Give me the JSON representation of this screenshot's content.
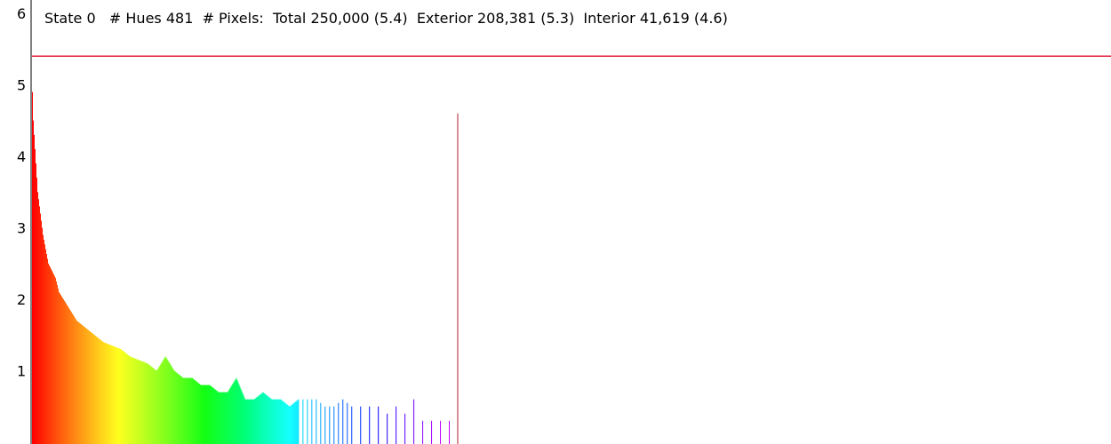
{
  "status": {
    "state_label": "State",
    "state_value": "0",
    "hues_label": "# Hues",
    "hues_value": "481",
    "pixels_label": "# Pixels:",
    "total_label": "Total",
    "total_value": "250,000",
    "total_log": "(5.4)",
    "exterior_label": "Exterior",
    "exterior_value": "208,381",
    "exterior_log": "(5.3)",
    "interior_label": "Interior",
    "interior_value": "41,619",
    "interior_log": "(4.6)"
  },
  "colors": {
    "axis": "#000000",
    "reference_line": "#e0203c",
    "interior_marker": "#b02030"
  },
  "chart_data": {
    "type": "bar",
    "title": "",
    "xlabel": "",
    "ylabel": "",
    "y_scale": "log10",
    "ylim": [
      0,
      6
    ],
    "y_ticks": [
      "1",
      "2",
      "3",
      "4",
      "5",
      "6"
    ],
    "x_range": [
      0,
      481
    ],
    "grid": false,
    "bar_color_encoding": "hue gradient red → orange → yellow → green → cyan → blue → violet",
    "reference_line": {
      "y": 5.4,
      "label": "Total"
    },
    "interior_marker": {
      "x": 481,
      "value": 4.6,
      "label": "Interior"
    },
    "series": [
      {
        "name": "",
        "x": [
          0,
          1,
          2,
          3,
          4,
          5,
          6,
          8,
          10,
          12,
          15,
          18,
          22,
          26,
          30,
          35,
          40,
          45,
          50,
          60,
          70,
          80,
          90,
          100,
          110,
          120,
          130,
          140,
          150,
          160,
          170,
          180,
          190,
          200,
          210,
          220,
          230,
          240,
          250,
          260,
          270,
          280,
          290,
          300,
          310,
          320,
          330,
          340,
          350,
          360,
          370,
          380,
          390,
          400,
          410,
          420,
          430,
          440,
          450,
          460,
          470
        ],
        "values": [
          4.9,
          4.5,
          4.3,
          4.1,
          3.9,
          3.7,
          3.5,
          3.3,
          3.1,
          2.9,
          2.7,
          2.5,
          2.4,
          2.3,
          2.1,
          2.0,
          1.9,
          1.8,
          1.7,
          1.6,
          1.5,
          1.4,
          1.35,
          1.3,
          1.2,
          1.15,
          1.1,
          1.0,
          1.2,
          1.0,
          0.9,
          0.9,
          0.8,
          0.8,
          0.7,
          0.7,
          0.9,
          0.6,
          0.6,
          0.7,
          0.6,
          0.6,
          0.5,
          0.6,
          0.6,
          0.6,
          0.5,
          0.5,
          0.6,
          0.5,
          0.5,
          0.5,
          0.5,
          0.4,
          0.5,
          0.4,
          0.6,
          0.3,
          0.3,
          0.3,
          0.3
        ]
      }
    ]
  }
}
